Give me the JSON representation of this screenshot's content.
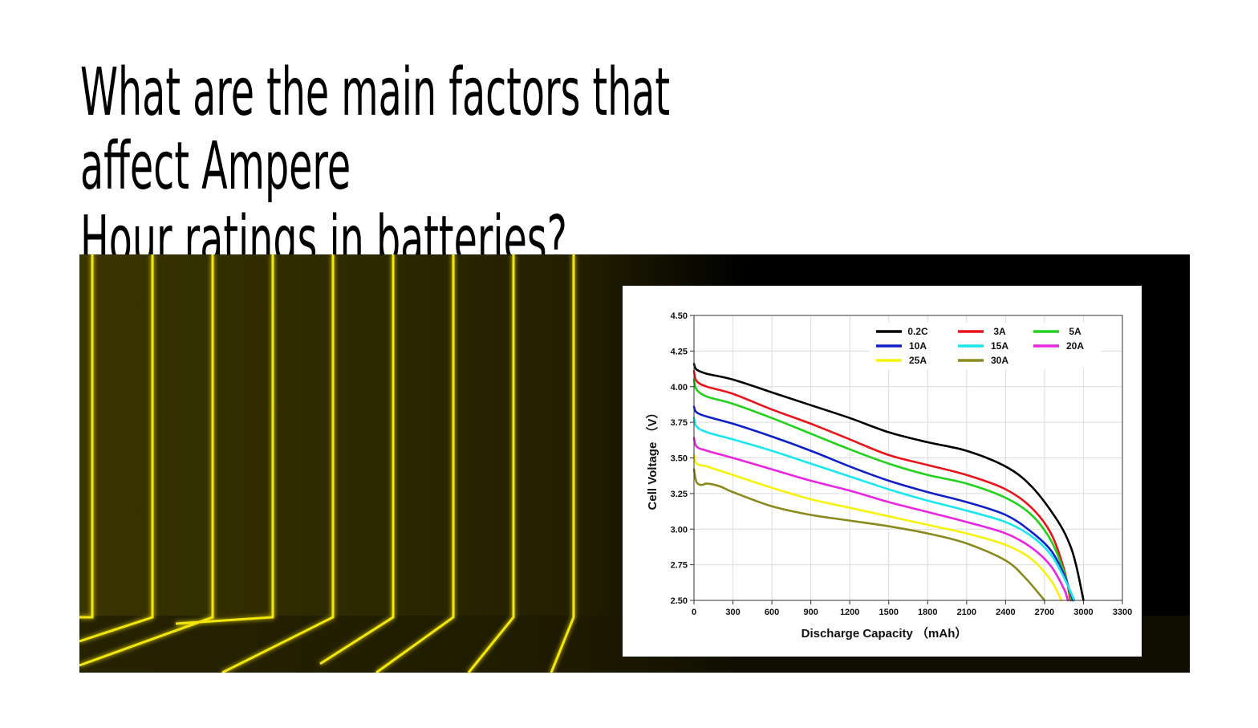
{
  "page": {
    "title": "What are the main factors that affect Ampere\nHour ratings in batteries?"
  },
  "colors": {
    "neon": "#f2e60a",
    "banner_bg": "#000000",
    "card_bg": "#ffffff"
  },
  "chart_data": {
    "type": "line",
    "title": "",
    "xlabel": "Discharge Capacity （mAh）",
    "ylabel": "Cell Voltage （V）",
    "xlim": [
      0,
      3300
    ],
    "ylim": [
      2.5,
      4.5
    ],
    "xticks": [
      0,
      300,
      600,
      900,
      1200,
      1500,
      1800,
      2100,
      2400,
      2700,
      3000,
      3300
    ],
    "yticks": [
      2.5,
      2.75,
      3.0,
      3.25,
      3.5,
      3.75,
      4.0,
      4.25,
      4.5
    ],
    "xtick_labels": [
      "0",
      "300",
      "600",
      "900",
      "1200",
      "1500",
      "1800",
      "2100",
      "2400",
      "2700",
      "3000",
      "3300"
    ],
    "ytick_labels": [
      "2.50",
      "2.75",
      "3.00",
      "3.25",
      "3.50",
      "3.75",
      "4.00",
      "4.25",
      "4.50"
    ],
    "grid": true,
    "legend_position": "top-right",
    "series": [
      {
        "name": "0.2C",
        "color": "#000000",
        "x": [
          0,
          20,
          100,
          300,
          600,
          900,
          1200,
          1500,
          1800,
          2100,
          2400,
          2600,
          2800,
          2900,
          2950,
          3000
        ],
        "y": [
          4.16,
          4.12,
          4.09,
          4.05,
          3.96,
          3.87,
          3.78,
          3.68,
          3.61,
          3.55,
          3.44,
          3.3,
          3.06,
          2.88,
          2.72,
          2.5
        ]
      },
      {
        "name": "3A",
        "color": "#e8141a",
        "x": [
          0,
          20,
          100,
          300,
          600,
          900,
          1200,
          1500,
          1800,
          2100,
          2400,
          2600,
          2750,
          2850,
          2900
        ],
        "y": [
          4.11,
          4.04,
          4.0,
          3.95,
          3.84,
          3.74,
          3.63,
          3.52,
          3.45,
          3.38,
          3.28,
          3.15,
          2.97,
          2.72,
          2.5
        ]
      },
      {
        "name": "5A",
        "color": "#22d11c",
        "x": [
          0,
          20,
          100,
          300,
          600,
          900,
          1200,
          1500,
          1800,
          2100,
          2400,
          2600,
          2750,
          2850,
          2910
        ],
        "y": [
          4.05,
          3.98,
          3.93,
          3.88,
          3.78,
          3.67,
          3.56,
          3.46,
          3.38,
          3.32,
          3.22,
          3.1,
          2.92,
          2.7,
          2.5
        ]
      },
      {
        "name": "10A",
        "color": "#1020c8",
        "x": [
          0,
          20,
          100,
          300,
          600,
          900,
          1200,
          1500,
          1800,
          2100,
          2400,
          2600,
          2750,
          2850,
          2920
        ],
        "y": [
          3.86,
          3.82,
          3.79,
          3.74,
          3.65,
          3.55,
          3.44,
          3.34,
          3.26,
          3.19,
          3.1,
          2.98,
          2.85,
          2.68,
          2.5
        ]
      },
      {
        "name": "15A",
        "color": "#1ae6ee",
        "x": [
          0,
          20,
          100,
          300,
          600,
          900,
          1200,
          1500,
          1800,
          2100,
          2400,
          2600,
          2750,
          2850,
          2930
        ],
        "y": [
          3.78,
          3.72,
          3.68,
          3.63,
          3.55,
          3.46,
          3.37,
          3.28,
          3.2,
          3.13,
          3.05,
          2.95,
          2.82,
          2.66,
          2.5
        ]
      },
      {
        "name": "20A",
        "color": "#e826e2",
        "x": [
          0,
          20,
          100,
          300,
          600,
          900,
          1200,
          1500,
          1800,
          2100,
          2400,
          2600,
          2750,
          2850,
          2880
        ],
        "y": [
          3.64,
          3.58,
          3.55,
          3.5,
          3.42,
          3.34,
          3.27,
          3.19,
          3.12,
          3.05,
          2.97,
          2.87,
          2.74,
          2.58,
          2.5
        ]
      },
      {
        "name": "25A",
        "color": "#f7f20a",
        "x": [
          0,
          20,
          100,
          300,
          600,
          900,
          1200,
          1500,
          1800,
          2100,
          2400,
          2600,
          2750,
          2830
        ],
        "y": [
          3.52,
          3.46,
          3.44,
          3.38,
          3.29,
          3.21,
          3.15,
          3.09,
          3.03,
          2.97,
          2.89,
          2.79,
          2.64,
          2.5
        ]
      },
      {
        "name": "30A",
        "color": "#8a8a1c",
        "x": [
          0,
          20,
          60,
          100,
          200,
          300,
          600,
          900,
          1200,
          1500,
          1800,
          2100,
          2400,
          2550,
          2700
        ],
        "y": [
          3.42,
          3.33,
          3.31,
          3.32,
          3.3,
          3.26,
          3.16,
          3.1,
          3.06,
          3.02,
          2.97,
          2.9,
          2.78,
          2.66,
          2.5
        ]
      }
    ]
  }
}
